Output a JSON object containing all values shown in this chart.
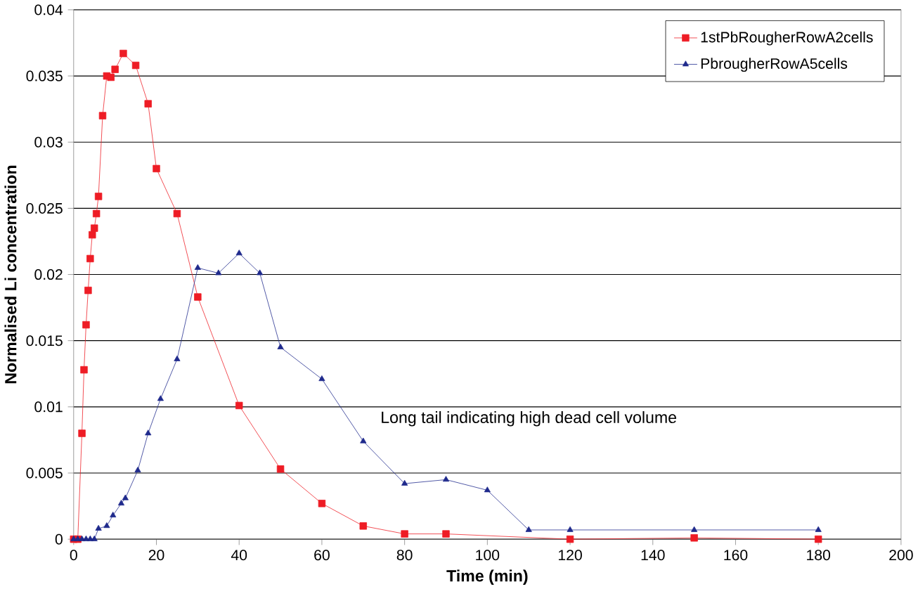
{
  "chart_data": {
    "type": "line",
    "xlabel": "Time (min)",
    "ylabel": "Normalised Li concentration",
    "xlim": [
      0,
      200
    ],
    "ylim": [
      0,
      0.04
    ],
    "xticks": [
      0,
      20,
      40,
      60,
      80,
      100,
      120,
      140,
      160,
      180,
      200
    ],
    "yticks": [
      0,
      0.005,
      0.01,
      0.015,
      0.02,
      0.025,
      0.03,
      0.035,
      0.04
    ],
    "grid": "y",
    "legend": "top right",
    "annotations": [
      "Long tail indicating high dead cell volume"
    ],
    "series": [
      {
        "name": "1stPbRougherRowA2cells",
        "color": "#ee1c25",
        "marker": "square",
        "x": [
          0,
          1,
          2,
          2.5,
          3,
          3.5,
          4,
          4.5,
          5,
          5.5,
          6,
          7,
          8,
          9,
          10,
          12,
          15,
          18,
          20,
          25,
          30,
          40,
          50,
          60,
          70,
          80,
          90,
          120,
          150,
          180
        ],
        "values": [
          0,
          0,
          0.008,
          0.0128,
          0.0162,
          0.0188,
          0.0212,
          0.023,
          0.0235,
          0.0246,
          0.0259,
          0.032,
          0.035,
          0.0349,
          0.0355,
          0.0367,
          0.0358,
          0.0329,
          0.028,
          0.0246,
          0.0183,
          0.0101,
          0.0053,
          0.0027,
          0.001,
          0.0004,
          0.0004,
          0,
          0.0001,
          0
        ]
      },
      {
        "name": "PbrougherRowA5cells",
        "color": "#1f2a8c",
        "marker": "triangle",
        "x": [
          0,
          1,
          2,
          3,
          4,
          5,
          6,
          8,
          9.5,
          11.5,
          12.5,
          15.5,
          18,
          21,
          25,
          30,
          35,
          40,
          45,
          50,
          60,
          70,
          80,
          90,
          100,
          110,
          120,
          150,
          180
        ],
        "values": [
          0,
          0,
          0,
          0,
          0,
          0,
          0.0008,
          0.001,
          0.0018,
          0.0027,
          0.0031,
          0.0052,
          0.008,
          0.0106,
          0.0136,
          0.0205,
          0.0201,
          0.0216,
          0.0201,
          0.0145,
          0.0121,
          0.0074,
          0.0042,
          0.0045,
          0.0037,
          0.0007,
          0.0007,
          0.0007,
          0.0007
        ]
      }
    ]
  }
}
